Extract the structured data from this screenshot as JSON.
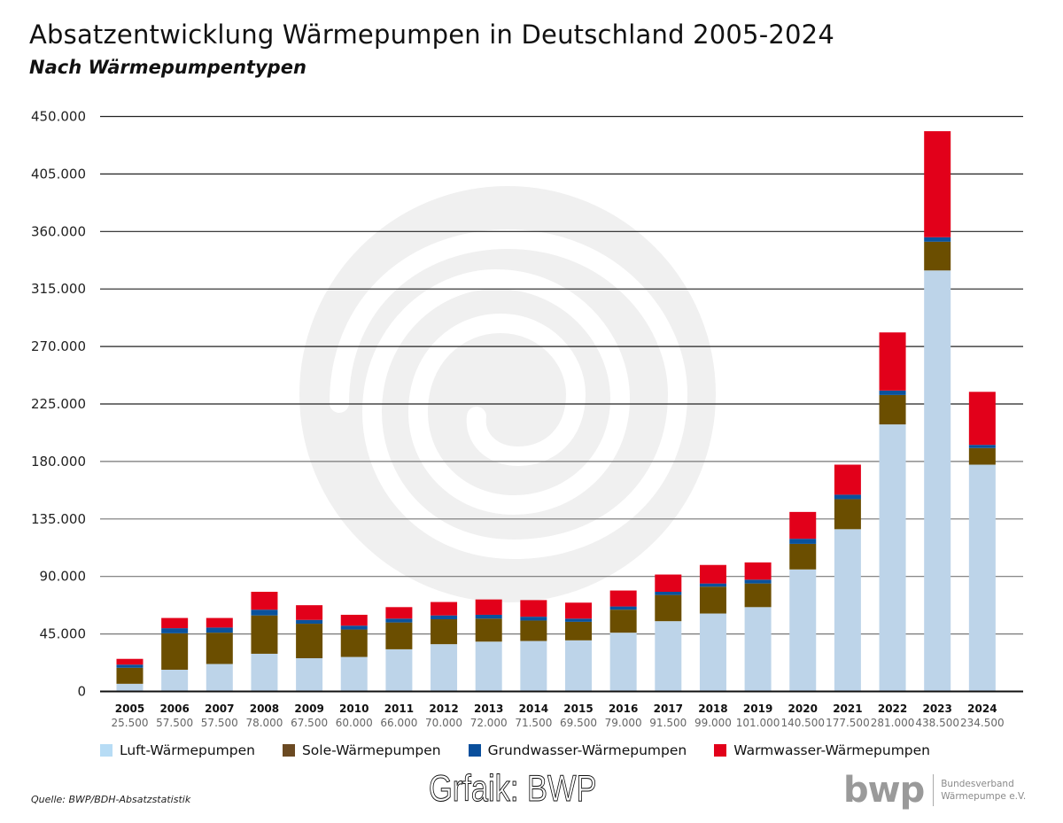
{
  "chart_data": {
    "type": "bar",
    "stacked": true,
    "title": "Absatzentwicklung Wärmepumpen in Deutschland 2005-2024",
    "subtitle": "Nach Wärmepumpentypen",
    "xlabel": "",
    "ylabel": "",
    "ylim": [
      0,
      450000
    ],
    "yticks": [
      0,
      45000,
      90000,
      135000,
      180000,
      225000,
      270000,
      315000,
      360000,
      405000,
      450000
    ],
    "ytick_labels": [
      "0",
      "45.000",
      "90.000",
      "135.000",
      "180.000",
      "225.000",
      "270.000",
      "315.000",
      "360.000",
      "405.000",
      "450.000"
    ],
    "grid": true,
    "legend_position": "bottom",
    "categories": [
      "2005",
      "2006",
      "2007",
      "2008",
      "2009",
      "2010",
      "2011",
      "2012",
      "2013",
      "2014",
      "2015",
      "2016",
      "2017",
      "2018",
      "2019",
      "2020",
      "2021",
      "2022",
      "2023",
      "2024"
    ],
    "totals": [
      25500,
      57500,
      57500,
      78000,
      67500,
      60000,
      66000,
      70000,
      72000,
      71500,
      69500,
      79000,
      91500,
      99000,
      101000,
      140500,
      177500,
      281000,
      438500,
      234500
    ],
    "total_labels": [
      "25.500",
      "57.500",
      "57.500",
      "78.000",
      "67.500",
      "60.000",
      "66.000",
      "70.000",
      "72.000",
      "71.500",
      "69.500",
      "79.000",
      "91.500",
      "99.000",
      "101.000",
      "140.500",
      "177.500",
      "281.000",
      "438.500",
      "234.500"
    ],
    "series": [
      {
        "name": "Luft-Wärmepumpen",
        "color": "#bdd4e9",
        "legend_color": "#b7dcf5",
        "values": [
          6000,
          17000,
          21500,
          29500,
          26000,
          27000,
          33000,
          37000,
          39000,
          39500,
          40000,
          46000,
          55000,
          61000,
          66000,
          95500,
          127000,
          209000,
          329500,
          177500
        ]
      },
      {
        "name": "Sole-Wärmepumpen",
        "color": "#6b4e00",
        "legend_color": "#6b4a22",
        "values": [
          12500,
          28500,
          24500,
          30000,
          27000,
          21500,
          21000,
          19500,
          18000,
          16000,
          14500,
          18000,
          20500,
          21000,
          18500,
          20000,
          23500,
          23000,
          22500,
          13000
        ]
      },
      {
        "name": "Grundwasser-Wärmepumpen",
        "color": "#0a529c",
        "legend_color": "#0a4f9c",
        "values": [
          2500,
          4000,
          4000,
          4500,
          3000,
          3000,
          3000,
          3000,
          3000,
          3000,
          2500,
          2500,
          2500,
          2500,
          3000,
          4000,
          3500,
          3500,
          3500,
          2500
        ]
      },
      {
        "name": "Warmwasser-Wärmepumpen",
        "color": "#e2001a",
        "legend_color": "#e2001a",
        "values": [
          4500,
          8000,
          7500,
          14000,
          11500,
          8500,
          9000,
          10500,
          12000,
          13000,
          12500,
          12500,
          13500,
          14500,
          13500,
          21000,
          23500,
          45500,
          83000,
          41500
        ]
      }
    ],
    "source": "Quelle: BWP/BDH-Absatzstatistik"
  },
  "credit": "Grfaik: BWP",
  "logo": {
    "mark": "bwp",
    "line1": "Bundesverband",
    "line2": "Wärmepumpe e.V."
  },
  "watermark_icon": "spiral-logo-icon"
}
